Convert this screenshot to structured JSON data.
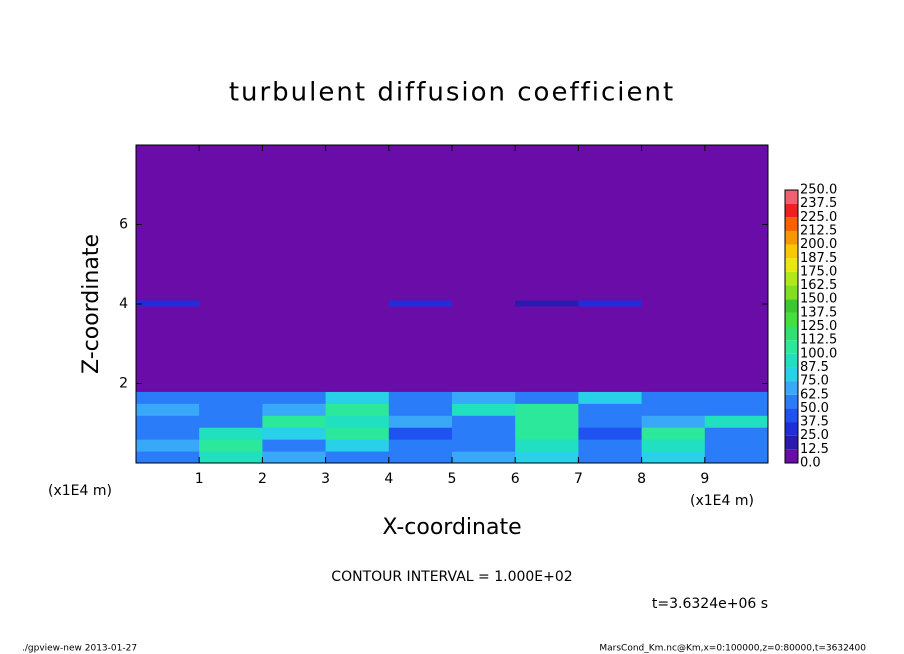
{
  "chart_data": {
    "type": "heatmap",
    "title": "turbulent diffusion coefficient",
    "x_label": "X-coordinate",
    "y_label": "Z-coordinate",
    "x_unit": "(x1E4 m)",
    "xlim": [
      0,
      10
    ],
    "ylim": [
      0,
      8
    ],
    "xticks": [
      1,
      2,
      3,
      4,
      5,
      6,
      7,
      8,
      9
    ],
    "yticks": [
      2,
      4,
      6
    ],
    "x_bins": [
      0,
      1,
      2,
      3,
      4,
      5,
      6,
      7,
      8,
      9,
      10
    ],
    "y_bins": [
      0,
      0.3,
      0.6,
      0.9,
      1.2,
      1.5,
      1.8,
      3.95,
      4.1,
      8
    ],
    "z": [
      [
        60,
        90,
        70,
        50,
        60,
        70,
        80,
        60,
        80,
        60
      ],
      [
        70,
        100,
        60,
        80,
        50,
        60,
        90,
        50,
        90,
        50
      ],
      [
        50,
        90,
        80,
        100,
        40,
        50,
        100,
        40,
        100,
        60
      ],
      [
        60,
        50,
        100,
        90,
        70,
        50,
        100,
        60,
        70,
        90
      ],
      [
        70,
        60,
        70,
        100,
        60,
        90,
        100,
        50,
        60,
        60
      ],
      [
        60,
        60,
        60,
        80,
        50,
        70,
        60,
        80,
        60,
        50
      ],
      [
        0,
        0,
        0,
        0,
        0,
        0,
        0,
        0,
        0,
        0
      ],
      [
        30,
        10,
        0,
        0,
        30,
        0,
        20,
        30,
        10,
        0
      ],
      [
        0,
        0,
        0,
        0,
        0,
        0,
        0,
        0,
        0,
        0
      ]
    ],
    "levels": [
      {
        "value": 0,
        "label": "0.0"
      },
      12.5,
      {
        "value": 25,
        "label": "25.0"
      },
      37.5,
      {
        "value": 50,
        "label": "50.0"
      },
      62.5,
      {
        "value": 75,
        "label": "75.0"
      },
      87.5,
      {
        "value": 100,
        "label": "100.0"
      },
      112.5,
      {
        "value": 125,
        "label": "125.0"
      },
      137.5,
      {
        "value": 150,
        "label": "150.0"
      },
      162.5,
      {
        "value": 175,
        "label": "175.0"
      },
      187.5,
      {
        "value": 200,
        "label": "200.0"
      },
      212.5,
      {
        "value": 225,
        "label": "225.0"
      },
      237.5,
      {
        "value": 250,
        "label": "250.0"
      }
    ],
    "colors": [
      "#6a0da8",
      "#2a1ab0",
      "#1f2ed8",
      "#1f52f0",
      "#2a7cf8",
      "#3aa8f8",
      "#28d0e8",
      "#20e0c0",
      "#2ce89a",
      "#30e070",
      "#44e040",
      "#3cc830",
      "#80e020",
      "#b0e818",
      "#e8e810",
      "#f8c800",
      "#f89800",
      "#f86000",
      "#f02020",
      "#f06070"
    ],
    "contour_interval": "CONTOUR INTERVAL = 1.000E+02",
    "time": "t=3.6324e+06 s",
    "footer_left": "./gpview-new  2013-01-27",
    "footer_right": "MarsCond_Km.nc@Km,x=0:100000,z=0:80000,t=3632400"
  }
}
